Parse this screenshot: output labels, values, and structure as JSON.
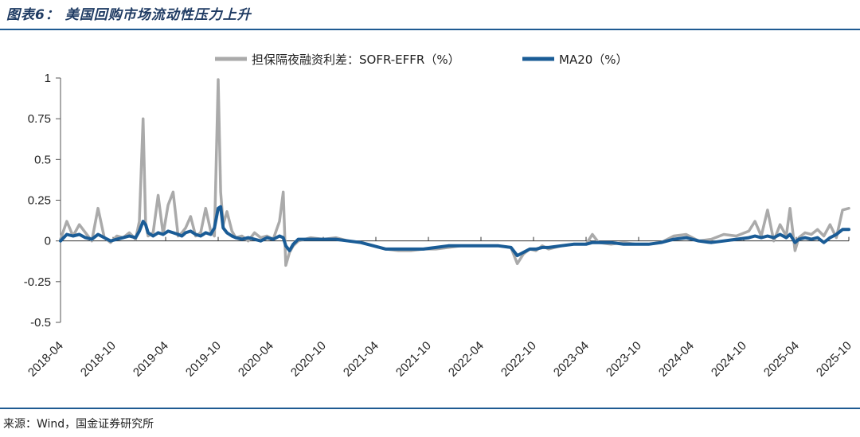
{
  "header": {
    "title": "图表6：  美国回购市场流动性压力上升"
  },
  "footer": {
    "source": "来源：Wind，国金证券研究所"
  },
  "chart_data": {
    "type": "line",
    "yticks": [
      "1",
      "0.75",
      "0.5",
      "0.25",
      "0",
      "-0.25",
      "-0.5"
    ],
    "ytick_values": [
      1,
      0.75,
      0.5,
      0.25,
      0,
      -0.25,
      -0.5
    ],
    "ylim": [
      -0.5,
      1
    ],
    "xticks": [
      "2018-04",
      "2018-10",
      "2019-04",
      "2019-10",
      "2020-04",
      "2020-10",
      "2021-04",
      "2021-10",
      "2022-04",
      "2022-10",
      "2023-04",
      "2023-10",
      "2024-04",
      "2024-10",
      "2025-04",
      "2025-10"
    ],
    "legend": {
      "position": "top"
    },
    "series": [
      {
        "name": "担保隔夜融资利差：SOFR-EFFR（%）",
        "color": "#aaaaaa",
        "points": [
          [
            0,
            0.01
          ],
          [
            0.5,
            0.12
          ],
          [
            1,
            0.03
          ],
          [
            1.5,
            0.1
          ],
          [
            2,
            0.05
          ],
          [
            2.5,
            0.0
          ],
          [
            3,
            0.2
          ],
          [
            3.5,
            0.02
          ],
          [
            4,
            -0.01
          ],
          [
            4.5,
            0.03
          ],
          [
            5,
            0.02
          ],
          [
            5.5,
            0.05
          ],
          [
            6,
            0.01
          ],
          [
            6.3,
            0.12
          ],
          [
            6.6,
            0.75
          ],
          [
            6.8,
            0.1
          ],
          [
            7,
            0.03
          ],
          [
            7.4,
            0.05
          ],
          [
            7.8,
            0.28
          ],
          [
            8.2,
            0.04
          ],
          [
            8.6,
            0.22
          ],
          [
            9,
            0.3
          ],
          [
            9.4,
            0.03
          ],
          [
            9.7,
            0.05
          ],
          [
            10,
            0.08
          ],
          [
            10.4,
            0.15
          ],
          [
            10.8,
            0.03
          ],
          [
            11.2,
            0.05
          ],
          [
            11.6,
            0.2
          ],
          [
            12,
            0.06
          ],
          [
            12.3,
            0.03
          ],
          [
            12.6,
            0.99
          ],
          [
            12.8,
            0.3
          ],
          [
            13,
            0.1
          ],
          [
            13.3,
            0.18
          ],
          [
            13.7,
            0.06
          ],
          [
            14,
            0.02
          ],
          [
            14.5,
            0.03
          ],
          [
            15,
            0.0
          ],
          [
            15.5,
            0.05
          ],
          [
            16,
            0.02
          ],
          [
            16.5,
            0.03
          ],
          [
            17,
            0.01
          ],
          [
            17.5,
            0.12
          ],
          [
            17.8,
            0.3
          ],
          [
            18,
            -0.15
          ],
          [
            18.3,
            -0.07
          ],
          [
            18.6,
            -0.03
          ],
          [
            19,
            0.0
          ],
          [
            20,
            0.02
          ],
          [
            21,
            0.01
          ],
          [
            22,
            0.02
          ],
          [
            23,
            0.0
          ],
          [
            24,
            -0.01
          ],
          [
            25,
            -0.03
          ],
          [
            26,
            -0.05
          ],
          [
            27,
            -0.06
          ],
          [
            28,
            -0.06
          ],
          [
            29,
            -0.05
          ],
          [
            30,
            -0.05
          ],
          [
            31,
            -0.04
          ],
          [
            32,
            -0.03
          ],
          [
            33,
            -0.03
          ],
          [
            34,
            -0.03
          ],
          [
            35,
            -0.03
          ],
          [
            36,
            -0.04
          ],
          [
            36.5,
            -0.14
          ],
          [
            37,
            -0.08
          ],
          [
            37.5,
            -0.05
          ],
          [
            38,
            -0.06
          ],
          [
            38.5,
            -0.03
          ],
          [
            39,
            -0.05
          ],
          [
            40,
            -0.03
          ],
          [
            41,
            -0.02
          ],
          [
            42,
            -0.02
          ],
          [
            42.5,
            0.04
          ],
          [
            43,
            -0.01
          ],
          [
            44,
            -0.02
          ],
          [
            45,
            -0.01
          ],
          [
            46,
            -0.02
          ],
          [
            47,
            -0.02
          ],
          [
            48,
            -0.01
          ],
          [
            49,
            0.03
          ],
          [
            50,
            0.04
          ],
          [
            51,
            0.0
          ],
          [
            52,
            0.01
          ],
          [
            53,
            0.04
          ],
          [
            54,
            0.03
          ],
          [
            55,
            0.06
          ],
          [
            55.5,
            0.12
          ],
          [
            56,
            0.03
          ],
          [
            56.5,
            0.19
          ],
          [
            57,
            0.0
          ],
          [
            57.5,
            0.1
          ],
          [
            58,
            0.03
          ],
          [
            58.3,
            0.2
          ],
          [
            58.7,
            -0.06
          ],
          [
            59,
            0.02
          ],
          [
            59.5,
            0.05
          ],
          [
            60,
            0.04
          ],
          [
            60.5,
            0.07
          ],
          [
            61,
            0.03
          ],
          [
            61.5,
            0.1
          ],
          [
            62,
            0.02
          ],
          [
            62.5,
            0.19
          ],
          [
            63,
            0.2
          ]
        ]
      },
      {
        "name": "MA20（%）",
        "color": "#1a5c96",
        "points": [
          [
            0,
            0.0
          ],
          [
            0.5,
            0.04
          ],
          [
            1,
            0.03
          ],
          [
            1.5,
            0.04
          ],
          [
            2,
            0.02
          ],
          [
            2.5,
            0.01
          ],
          [
            3,
            0.04
          ],
          [
            3.5,
            0.02
          ],
          [
            4,
            0.0
          ],
          [
            4.5,
            0.01
          ],
          [
            5,
            0.02
          ],
          [
            5.5,
            0.03
          ],
          [
            6,
            0.02
          ],
          [
            6.3,
            0.06
          ],
          [
            6.6,
            0.12
          ],
          [
            6.8,
            0.1
          ],
          [
            7,
            0.05
          ],
          [
            7.4,
            0.03
          ],
          [
            7.8,
            0.05
          ],
          [
            8.2,
            0.04
          ],
          [
            8.6,
            0.06
          ],
          [
            9,
            0.05
          ],
          [
            9.4,
            0.04
          ],
          [
            9.7,
            0.03
          ],
          [
            10,
            0.05
          ],
          [
            10.4,
            0.06
          ],
          [
            10.8,
            0.04
          ],
          [
            11.2,
            0.03
          ],
          [
            11.6,
            0.05
          ],
          [
            12,
            0.04
          ],
          [
            12.3,
            0.08
          ],
          [
            12.6,
            0.2
          ],
          [
            12.8,
            0.21
          ],
          [
            13,
            0.08
          ],
          [
            13.3,
            0.05
          ],
          [
            13.7,
            0.03
          ],
          [
            14,
            0.02
          ],
          [
            14.5,
            0.01
          ],
          [
            15,
            0.02
          ],
          [
            15.5,
            0.01
          ],
          [
            16,
            0.0
          ],
          [
            16.5,
            0.02
          ],
          [
            17,
            0.01
          ],
          [
            17.5,
            0.03
          ],
          [
            17.8,
            0.02
          ],
          [
            18,
            -0.03
          ],
          [
            18.3,
            -0.06
          ],
          [
            18.6,
            -0.02
          ],
          [
            19,
            0.01
          ],
          [
            20,
            0.01
          ],
          [
            21,
            0.01
          ],
          [
            22,
            0.01
          ],
          [
            23,
            0.0
          ],
          [
            24,
            -0.01
          ],
          [
            25,
            -0.03
          ],
          [
            26,
            -0.05
          ],
          [
            27,
            -0.05
          ],
          [
            28,
            -0.05
          ],
          [
            29,
            -0.05
          ],
          [
            30,
            -0.04
          ],
          [
            31,
            -0.03
          ],
          [
            32,
            -0.03
          ],
          [
            33,
            -0.03
          ],
          [
            34,
            -0.03
          ],
          [
            35,
            -0.03
          ],
          [
            36,
            -0.04
          ],
          [
            36.5,
            -0.09
          ],
          [
            37,
            -0.07
          ],
          [
            37.5,
            -0.05
          ],
          [
            38,
            -0.05
          ],
          [
            38.5,
            -0.04
          ],
          [
            39,
            -0.04
          ],
          [
            40,
            -0.03
          ],
          [
            41,
            -0.02
          ],
          [
            42,
            -0.02
          ],
          [
            42.5,
            -0.01
          ],
          [
            43,
            -0.01
          ],
          [
            44,
            -0.01
          ],
          [
            45,
            -0.02
          ],
          [
            46,
            -0.02
          ],
          [
            47,
            -0.02
          ],
          [
            48,
            -0.01
          ],
          [
            49,
            0.01
          ],
          [
            50,
            0.02
          ],
          [
            51,
            0.0
          ],
          [
            52,
            -0.01
          ],
          [
            53,
            0.0
          ],
          [
            54,
            0.01
          ],
          [
            55,
            0.02
          ],
          [
            55.5,
            0.03
          ],
          [
            56,
            0.02
          ],
          [
            56.5,
            0.03
          ],
          [
            57,
            0.02
          ],
          [
            57.5,
            0.04
          ],
          [
            58,
            0.02
          ],
          [
            58.3,
            0.04
          ],
          [
            58.7,
            -0.01
          ],
          [
            59,
            0.01
          ],
          [
            59.5,
            0.02
          ],
          [
            60,
            0.01
          ],
          [
            60.5,
            0.02
          ],
          [
            61,
            -0.01
          ],
          [
            61.5,
            0.02
          ],
          [
            62,
            0.04
          ],
          [
            62.5,
            0.07
          ],
          [
            63,
            0.07
          ]
        ]
      }
    ]
  }
}
